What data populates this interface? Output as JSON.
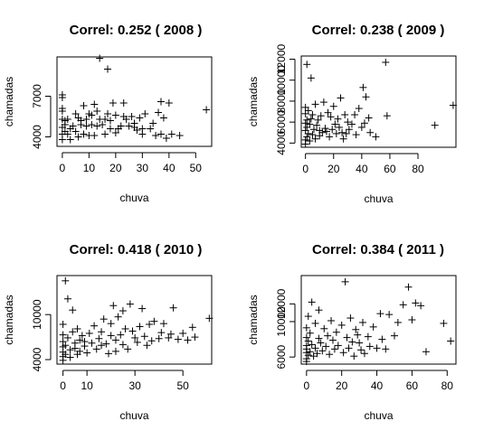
{
  "chart_data": [
    {
      "type": "scatter",
      "title": "Correl:  0.252 ( 2008 )",
      "xlabel": "chuva",
      "ylabel": "chamadas",
      "xlim": [
        -2,
        56
      ],
      "ylim": [
        3300,
        9900
      ],
      "xticks": [
        0,
        10,
        20,
        30,
        40,
        50
      ],
      "yticks": [
        4000,
        7000
      ],
      "points": [
        [
          0,
          5900
        ],
        [
          0,
          4200
        ],
        [
          0,
          5300
        ],
        [
          0,
          6100
        ],
        [
          0,
          3800
        ],
        [
          0,
          4700
        ],
        [
          1,
          4400
        ],
        [
          1,
          5200
        ],
        [
          1,
          4900
        ],
        [
          0,
          6900
        ],
        [
          0,
          7100
        ],
        [
          2,
          4200
        ],
        [
          2,
          5300
        ],
        [
          3,
          4600
        ],
        [
          3,
          3800
        ],
        [
          4,
          4800
        ],
        [
          5,
          5700
        ],
        [
          5,
          4400
        ],
        [
          6,
          5400
        ],
        [
          6,
          4000
        ],
        [
          7,
          4900
        ],
        [
          7,
          5200
        ],
        [
          8,
          4200
        ],
        [
          8,
          6300
        ],
        [
          9,
          5300
        ],
        [
          9,
          4800
        ],
        [
          10,
          5700
        ],
        [
          10,
          4100
        ],
        [
          11,
          4900
        ],
        [
          11,
          5600
        ],
        [
          12,
          4100
        ],
        [
          12,
          6400
        ],
        [
          13,
          4800
        ],
        [
          13,
          5900
        ],
        [
          14,
          5300
        ],
        [
          14,
          9800
        ],
        [
          15,
          4900
        ],
        [
          16,
          5300
        ],
        [
          16,
          4200
        ],
        [
          17,
          5700
        ],
        [
          17,
          9000
        ],
        [
          18,
          4600
        ],
        [
          18,
          5200
        ],
        [
          19,
          6500
        ],
        [
          20,
          5600
        ],
        [
          20,
          4300
        ],
        [
          21,
          4600
        ],
        [
          22,
          4800
        ],
        [
          23,
          5500
        ],
        [
          23,
          6500
        ],
        [
          24,
          5300
        ],
        [
          25,
          4800
        ],
        [
          26,
          5500
        ],
        [
          27,
          5000
        ],
        [
          27,
          4700
        ],
        [
          28,
          4500
        ],
        [
          29,
          5400
        ],
        [
          30,
          4200
        ],
        [
          30,
          4600
        ],
        [
          31,
          5700
        ],
        [
          33,
          4600
        ],
        [
          34,
          5000
        ],
        [
          35,
          4100
        ],
        [
          36,
          5800
        ],
        [
          37,
          4200
        ],
        [
          37,
          6600
        ],
        [
          38,
          5400
        ],
        [
          39,
          3900
        ],
        [
          40,
          6500
        ],
        [
          41,
          4200
        ],
        [
          44,
          4100
        ],
        [
          54,
          6000
        ]
      ]
    },
    {
      "type": "scatter",
      "title": "Correl:  0.238 ( 2009 )",
      "xlabel": "chuva",
      "ylabel": "chamadas",
      "xlim": [
        -3,
        107
      ],
      "ylim": [
        3600,
        12300
      ],
      "xticks": [
        0,
        20,
        40,
        60,
        80
      ],
      "yticks": [
        4000,
        6000,
        8000,
        10000,
        12000
      ],
      "points": [
        [
          0,
          5200
        ],
        [
          0,
          4300
        ],
        [
          0,
          6800
        ],
        [
          0,
          7400
        ],
        [
          0,
          3900
        ],
        [
          0,
          5900
        ],
        [
          1,
          4600
        ],
        [
          1,
          6200
        ],
        [
          1,
          11500
        ],
        [
          1,
          5500
        ],
        [
          2,
          4900
        ],
        [
          2,
          7100
        ],
        [
          3,
          4200
        ],
        [
          3,
          5800
        ],
        [
          4,
          6300
        ],
        [
          4,
          10200
        ],
        [
          5,
          4800
        ],
        [
          5,
          6700
        ],
        [
          6,
          5300
        ],
        [
          7,
          7700
        ],
        [
          7,
          4400
        ],
        [
          8,
          5700
        ],
        [
          9,
          6200
        ],
        [
          10,
          5200
        ],
        [
          10,
          4700
        ],
        [
          11,
          6600
        ],
        [
          12,
          5000
        ],
        [
          13,
          7900
        ],
        [
          14,
          5400
        ],
        [
          15,
          5100
        ],
        [
          16,
          6900
        ],
        [
          17,
          4600
        ],
        [
          18,
          6500
        ],
        [
          19,
          5300
        ],
        [
          20,
          7500
        ],
        [
          21,
          5800
        ],
        [
          22,
          4900
        ],
        [
          23,
          6300
        ],
        [
          24,
          5500
        ],
        [
          25,
          8300
        ],
        [
          26,
          5000
        ],
        [
          27,
          4400
        ],
        [
          28,
          6700
        ],
        [
          29,
          4900
        ],
        [
          30,
          6000
        ],
        [
          31,
          5300
        ],
        [
          33,
          5800
        ],
        [
          35,
          6700
        ],
        [
          36,
          4800
        ],
        [
          38,
          7300
        ],
        [
          40,
          5500
        ],
        [
          41,
          9300
        ],
        [
          42,
          5900
        ],
        [
          43,
          8400
        ],
        [
          45,
          6400
        ],
        [
          46,
          5000
        ],
        [
          50,
          4600
        ],
        [
          57,
          11700
        ],
        [
          58,
          6600
        ],
        [
          92,
          5700
        ],
        [
          105,
          7600
        ]
      ]
    },
    {
      "type": "scatter",
      "title": "Correl:  0.418 ( 2010 )",
      "xlabel": "chuva",
      "ylabel": "chamadas",
      "xlim": [
        -2.5,
        62
      ],
      "ylim": [
        3400,
        15200
      ],
      "xticks": [
        0,
        10,
        30,
        50
      ],
      "yticks": [
        4000,
        10000
      ],
      "points": [
        [
          0,
          5000
        ],
        [
          0,
          6400
        ],
        [
          0,
          4400
        ],
        [
          0,
          7300
        ],
        [
          0,
          5700
        ],
        [
          0,
          3900
        ],
        [
          0,
          8700
        ],
        [
          1,
          14500
        ],
        [
          1,
          5900
        ],
        [
          1,
          4700
        ],
        [
          2,
          12100
        ],
        [
          2,
          6900
        ],
        [
          3,
          5300
        ],
        [
          3,
          4300
        ],
        [
          4,
          7700
        ],
        [
          4,
          10600
        ],
        [
          5,
          5500
        ],
        [
          5,
          6200
        ],
        [
          6,
          8100
        ],
        [
          6,
          4700
        ],
        [
          7,
          6600
        ],
        [
          7,
          5100
        ],
        [
          8,
          7200
        ],
        [
          9,
          5800
        ],
        [
          9,
          6400
        ],
        [
          10,
          4900
        ],
        [
          11,
          7500
        ],
        [
          12,
          6200
        ],
        [
          13,
          8500
        ],
        [
          14,
          5400
        ],
        [
          15,
          6800
        ],
        [
          16,
          7700
        ],
        [
          16,
          5900
        ],
        [
          17,
          9400
        ],
        [
          18,
          6100
        ],
        [
          19,
          4800
        ],
        [
          20,
          8800
        ],
        [
          20,
          7200
        ],
        [
          21,
          11200
        ],
        [
          22,
          6600
        ],
        [
          22,
          5100
        ],
        [
          23,
          9700
        ],
        [
          24,
          7300
        ],
        [
          25,
          10500
        ],
        [
          25,
          6000
        ],
        [
          26,
          8100
        ],
        [
          27,
          5400
        ],
        [
          28,
          11400
        ],
        [
          29,
          7800
        ],
        [
          30,
          6900
        ],
        [
          31,
          6300
        ],
        [
          32,
          8400
        ],
        [
          33,
          10800
        ],
        [
          34,
          7100
        ],
        [
          35,
          5900
        ],
        [
          36,
          8700
        ],
        [
          37,
          6500
        ],
        [
          38,
          9100
        ],
        [
          40,
          6800
        ],
        [
          41,
          7600
        ],
        [
          42,
          8800
        ],
        [
          44,
          6900
        ],
        [
          45,
          7400
        ],
        [
          46,
          10900
        ],
        [
          48,
          6700
        ],
        [
          50,
          7500
        ],
        [
          52,
          6600
        ],
        [
          54,
          8300
        ],
        [
          55,
          7000
        ],
        [
          61,
          9500
        ]
      ]
    },
    {
      "type": "scatter",
      "title": "Correl:  0.384 ( 2011 )",
      "xlabel": "chuva",
      "ylabel": "chamadas",
      "xlim": [
        -3,
        85
      ],
      "ylim": [
        5200,
        15200
      ],
      "xticks": [
        0,
        20,
        40,
        60,
        80
      ],
      "yticks": [
        6000,
        10000,
        12000
      ],
      "points": [
        [
          0,
          6500
        ],
        [
          0,
          7300
        ],
        [
          0,
          5800
        ],
        [
          0,
          8200
        ],
        [
          0,
          6900
        ],
        [
          0,
          9300
        ],
        [
          0,
          5500
        ],
        [
          1,
          7800
        ],
        [
          1,
          6200
        ],
        [
          1,
          10600
        ],
        [
          2,
          6600
        ],
        [
          2,
          8700
        ],
        [
          3,
          7400
        ],
        [
          3,
          12200
        ],
        [
          4,
          6100
        ],
        [
          5,
          9800
        ],
        [
          5,
          7000
        ],
        [
          6,
          6400
        ],
        [
          7,
          8100
        ],
        [
          7,
          11300
        ],
        [
          8,
          7600
        ],
        [
          9,
          6700
        ],
        [
          10,
          9200
        ],
        [
          11,
          7200
        ],
        [
          12,
          8400
        ],
        [
          13,
          6300
        ],
        [
          14,
          10100
        ],
        [
          15,
          7900
        ],
        [
          16,
          6900
        ],
        [
          17,
          8800
        ],
        [
          18,
          7300
        ],
        [
          20,
          9600
        ],
        [
          21,
          6500
        ],
        [
          22,
          14500
        ],
        [
          23,
          8200
        ],
        [
          24,
          7000
        ],
        [
          25,
          10400
        ],
        [
          26,
          7700
        ],
        [
          27,
          6100
        ],
        [
          28,
          9100
        ],
        [
          29,
          8500
        ],
        [
          30,
          7600
        ],
        [
          31,
          6800
        ],
        [
          32,
          9900
        ],
        [
          33,
          6400
        ],
        [
          35,
          8300
        ],
        [
          36,
          7200
        ],
        [
          38,
          9400
        ],
        [
          40,
          7000
        ],
        [
          42,
          10900
        ],
        [
          43,
          8000
        ],
        [
          45,
          6900
        ],
        [
          47,
          10800
        ],
        [
          50,
          8400
        ],
        [
          52,
          9900
        ],
        [
          55,
          11900
        ],
        [
          58,
          13900
        ],
        [
          60,
          10200
        ],
        [
          62,
          12100
        ],
        [
          65,
          11800
        ],
        [
          68,
          6600
        ],
        [
          78,
          9800
        ],
        [
          82,
          7800
        ]
      ]
    }
  ]
}
